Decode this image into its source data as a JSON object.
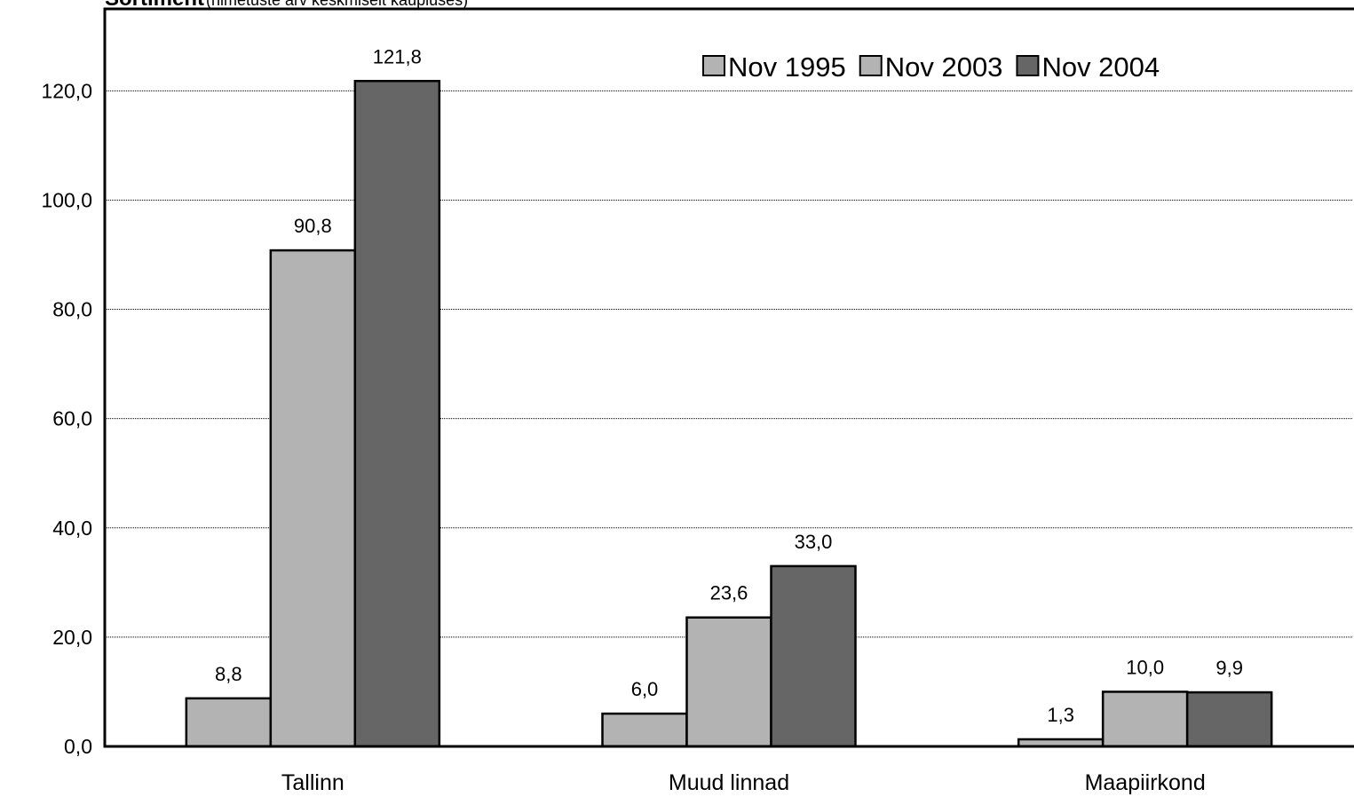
{
  "chart_data": {
    "type": "bar",
    "title": "Sortiment",
    "subtitle": "(nimetuste arv keskmiselt kaupluses)",
    "categories": [
      "Tallinn",
      "Muud linnad",
      "Maapiirkond"
    ],
    "series": [
      {
        "name": "Nov 1995",
        "color": "#b3b3b3",
        "values": [
          8.8,
          6.0,
          1.3
        ],
        "value_labels": [
          "8,8",
          "6,0",
          "1,3"
        ]
      },
      {
        "name": "Nov 2003",
        "color": "#b3b3b3",
        "values": [
          90.8,
          23.6,
          10.0
        ],
        "value_labels": [
          "90,8",
          "23,6",
          "10,0"
        ]
      },
      {
        "name": "Nov 2004",
        "color": "#666666",
        "values": [
          121.8,
          33.0,
          9.9
        ],
        "value_labels": [
          "121,8",
          "33,0",
          "9,9"
        ]
      }
    ],
    "ylim": [
      0,
      135
    ],
    "yticks": [
      {
        "value": 0,
        "label": "0,0"
      },
      {
        "value": 20,
        "label": "20,0"
      },
      {
        "value": 40,
        "label": "40,0"
      },
      {
        "value": 60,
        "label": "60,0"
      },
      {
        "value": 80,
        "label": "80,0"
      },
      {
        "value": 100,
        "label": "100,0"
      },
      {
        "value": 120,
        "label": "120,0"
      }
    ],
    "grid": true,
    "legend": "top-right"
  }
}
